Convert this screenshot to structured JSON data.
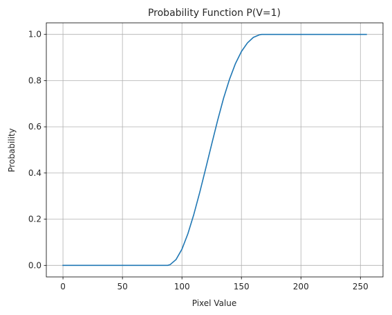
{
  "chart_data": {
    "type": "line",
    "title": "Probability Function P(V=1)",
    "xlabel": "Pixel Value",
    "ylabel": "Probability",
    "xlim": [
      -14,
      269
    ],
    "ylim": [
      -0.05,
      1.05
    ],
    "xticks": [
      0,
      50,
      100,
      150,
      200,
      250
    ],
    "xtick_labels": [
      "0",
      "50",
      "100",
      "150",
      "200",
      "250"
    ],
    "yticks": [
      0.0,
      0.2,
      0.4,
      0.6,
      0.8,
      1.0
    ],
    "ytick_labels": [
      "0.0",
      "0.2",
      "0.4",
      "0.6",
      "0.8",
      "1.0"
    ],
    "grid": true,
    "series": [
      {
        "color": "#1f77b4",
        "x": [
          0,
          20,
          40,
          60,
          80,
          88,
          90,
          95,
          100,
          105,
          110,
          115,
          120,
          125,
          130,
          135,
          140,
          145,
          150,
          155,
          160,
          165,
          167,
          180,
          200,
          220,
          240,
          255
        ],
        "y": [
          0.0,
          0.0,
          0.0,
          0.0,
          0.0,
          0.0,
          0.003,
          0.025,
          0.07,
          0.137,
          0.221,
          0.317,
          0.42,
          0.525,
          0.628,
          0.724,
          0.806,
          0.874,
          0.926,
          0.963,
          0.987,
          0.998,
          1.0,
          1.0,
          1.0,
          1.0,
          1.0,
          1.0
        ]
      }
    ]
  },
  "colors": {
    "axis": "#000000",
    "grid": "#b0b0b0",
    "line": "#1f77b4"
  }
}
